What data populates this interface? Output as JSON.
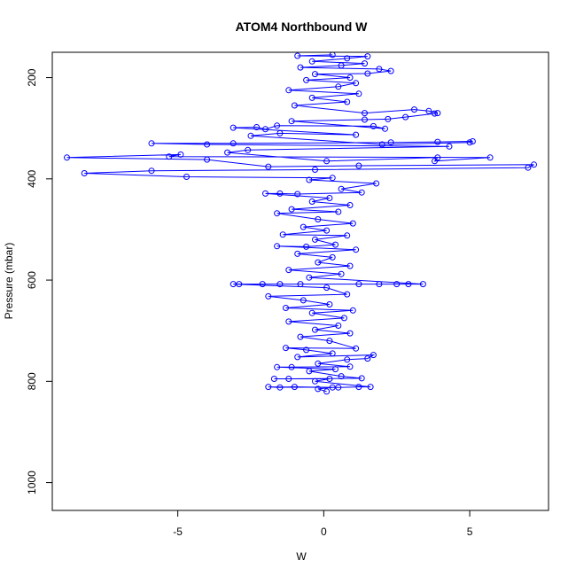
{
  "chart_data": {
    "type": "scatter",
    "title": "ATOM4 Northbound W",
    "xlabel": "W",
    "ylabel": "Pressure (mbar)",
    "xlim": [
      -9.3,
      7.7
    ],
    "ylim": [
      1055,
      150
    ],
    "y_reversed": true,
    "x_ticks": [
      -5,
      0,
      5
    ],
    "x_tick_labels": [
      "-5",
      "0",
      "5"
    ],
    "y_ticks": [
      200,
      400,
      600,
      800,
      1000
    ],
    "y_tick_labels": [
      "200",
      "400",
      "600",
      "800",
      "1000"
    ],
    "grid": false,
    "legend": "none",
    "marker": "open-circle",
    "connected": true,
    "colors": {
      "points": "#0000ff",
      "line": "#0000ff",
      "axis": "#000000"
    },
    "series": [
      {
        "points": [
          [
            0.1,
            820
          ],
          [
            -0.2,
            815
          ],
          [
            0.3,
            812
          ],
          [
            -1.9,
            811
          ],
          [
            -1.5,
            812
          ],
          [
            -1.0,
            811
          ],
          [
            0.5,
            812
          ],
          [
            1.2,
            811
          ],
          [
            1.6,
            811
          ],
          [
            -0.3,
            800
          ],
          [
            0.2,
            795
          ],
          [
            -1.7,
            795
          ],
          [
            -1.2,
            795
          ],
          [
            1.3,
            794
          ],
          [
            0.6,
            790
          ],
          [
            -0.5,
            780
          ],
          [
            0.4,
            776
          ],
          [
            -1.6,
            772
          ],
          [
            -1.1,
            772
          ],
          [
            0.9,
            771
          ],
          [
            -0.2,
            765
          ],
          [
            0.8,
            757
          ],
          [
            1.5,
            755
          ],
          [
            1.7,
            748
          ],
          [
            -0.9,
            752
          ],
          [
            0.3,
            745
          ],
          [
            -0.6,
            738
          ],
          [
            -1.3,
            734
          ],
          [
            1.1,
            735
          ],
          [
            0.2,
            720
          ],
          [
            -0.8,
            712
          ],
          [
            0.9,
            705
          ],
          [
            -0.3,
            698
          ],
          [
            0.5,
            690
          ],
          [
            -1.2,
            682
          ],
          [
            0.7,
            675
          ],
          [
            -0.4,
            665
          ],
          [
            1.0,
            660
          ],
          [
            -1.3,
            655
          ],
          [
            0.2,
            648
          ],
          [
            -0.7,
            640
          ],
          [
            -1.9,
            632
          ],
          [
            0.8,
            628
          ],
          [
            0.1,
            615
          ],
          [
            -3.1,
            608
          ],
          [
            -2.9,
            608
          ],
          [
            -2.1,
            608
          ],
          [
            -1.5,
            608
          ],
          [
            -0.8,
            608
          ],
          [
            1.2,
            608
          ],
          [
            1.9,
            608
          ],
          [
            2.5,
            608
          ],
          [
            2.9,
            608
          ],
          [
            3.4,
            608
          ],
          [
            -0.5,
            595
          ],
          [
            0.6,
            588
          ],
          [
            -1.2,
            580
          ],
          [
            0.9,
            572
          ],
          [
            -0.2,
            565
          ],
          [
            0.3,
            555
          ],
          [
            -0.9,
            548
          ],
          [
            1.1,
            540
          ],
          [
            -1.6,
            533
          ],
          [
            -0.6,
            534
          ],
          [
            0.4,
            530
          ],
          [
            -0.3,
            520
          ],
          [
            0.8,
            512
          ],
          [
            -1.4,
            510
          ],
          [
            0.1,
            502
          ],
          [
            -0.7,
            495
          ],
          [
            1.0,
            488
          ],
          [
            -0.2,
            480
          ],
          [
            -1.6,
            468
          ],
          [
            0.5,
            465
          ],
          [
            -1.1,
            460
          ],
          [
            0.9,
            452
          ],
          [
            -0.4,
            445
          ],
          [
            0.2,
            438
          ],
          [
            -2.0,
            429
          ],
          [
            -1.5,
            429
          ],
          [
            -0.9,
            430
          ],
          [
            1.3,
            427
          ],
          [
            0.6,
            420
          ],
          [
            1.8,
            409
          ],
          [
            -0.5,
            402
          ],
          [
            0.3,
            398
          ],
          [
            -4.7,
            396
          ],
          [
            -8.2,
            389
          ],
          [
            -5.9,
            384
          ],
          [
            -0.3,
            382
          ],
          [
            7.0,
            378
          ],
          [
            7.2,
            372
          ],
          [
            1.2,
            374
          ],
          [
            -1.9,
            376
          ],
          [
            -4.0,
            362
          ],
          [
            -8.8,
            358
          ],
          [
            -4.9,
            352
          ],
          [
            -5.3,
            356
          ],
          [
            5.7,
            358
          ],
          [
            3.8,
            365
          ],
          [
            3.9,
            358
          ],
          [
            0.1,
            365
          ],
          [
            -3.3,
            348
          ],
          [
            -2.6,
            343
          ],
          [
            4.3,
            336
          ],
          [
            -4.0,
            332
          ],
          [
            -5.9,
            330
          ],
          [
            -3.1,
            330
          ],
          [
            2.3,
            328
          ],
          [
            3.9,
            327
          ],
          [
            5.1,
            326
          ],
          [
            5.0,
            328
          ],
          [
            2.0,
            332
          ],
          [
            -2.5,
            315
          ],
          [
            -1.5,
            310
          ],
          [
            1.1,
            313
          ],
          [
            -3.1,
            299
          ],
          [
            -2.3,
            298
          ],
          [
            -2.0,
            302
          ],
          [
            -1.6,
            295
          ],
          [
            1.7,
            296
          ],
          [
            2.1,
            301
          ],
          [
            -1.1,
            286
          ],
          [
            1.4,
            283
          ],
          [
            2.2,
            282
          ],
          [
            2.8,
            278
          ],
          [
            3.8,
            271
          ],
          [
            3.9,
            270
          ],
          [
            3.6,
            266
          ],
          [
            3.1,
            263
          ],
          [
            1.4,
            270
          ],
          [
            -1.0,
            255
          ],
          [
            0.8,
            248
          ],
          [
            -0.4,
            240
          ],
          [
            1.2,
            232
          ],
          [
            -1.2,
            225
          ],
          [
            0.5,
            218
          ],
          [
            1.1,
            211
          ],
          [
            -0.6,
            205
          ],
          [
            0.9,
            200
          ],
          [
            -0.3,
            193
          ],
          [
            1.5,
            192
          ],
          [
            2.3,
            187
          ],
          [
            1.9,
            183
          ],
          [
            -0.8,
            180
          ],
          [
            0.6,
            176
          ],
          [
            1.4,
            172
          ],
          [
            -0.4,
            168
          ],
          [
            0.8,
            162
          ],
          [
            1.5,
            158
          ],
          [
            -0.9,
            157
          ],
          [
            0.3,
            155
          ]
        ]
      }
    ]
  }
}
